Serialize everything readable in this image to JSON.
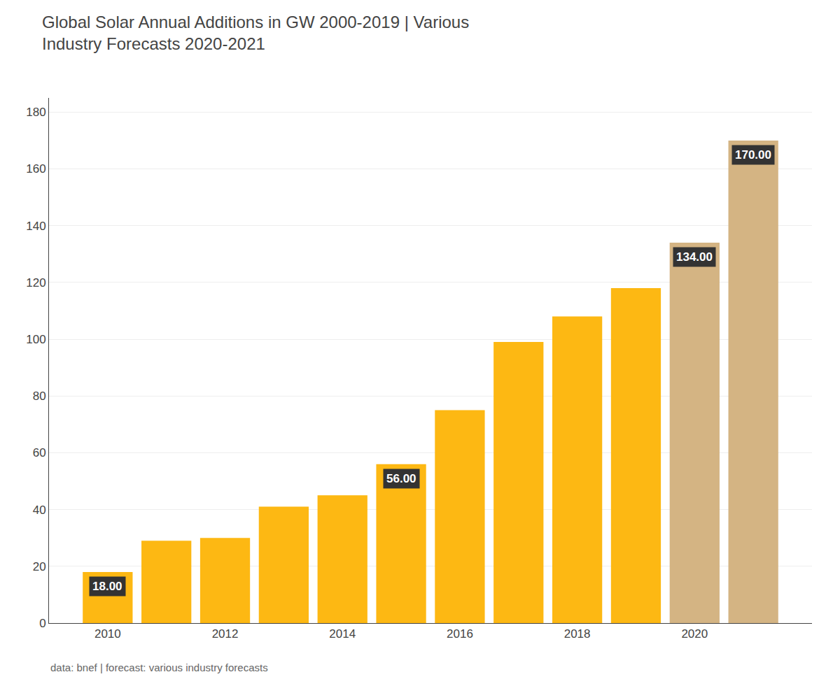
{
  "chart_data": {
    "type": "bar",
    "title": "Global Solar Annual Additions in GW 2000-2019 | Various\nIndustry Forecasts 2020-2021",
    "x": [
      2010,
      2011,
      2012,
      2013,
      2014,
      2015,
      2016,
      2017,
      2018,
      2019,
      2020,
      2021
    ],
    "values": [
      18,
      29,
      30,
      41,
      45,
      56,
      75,
      99,
      108,
      118,
      134,
      170
    ],
    "colors": [
      "#FDB813",
      "#FDB813",
      "#FDB813",
      "#FDB813",
      "#FDB813",
      "#FDB813",
      "#FDB813",
      "#FDB813",
      "#FDB813",
      "#FDB813",
      "#D4B483",
      "#D4B483"
    ],
    "data_labels": true,
    "value_labels": [
      "18.00",
      null,
      null,
      null,
      null,
      "56.00",
      null,
      null,
      null,
      null,
      "134.00",
      "170.00"
    ],
    "xlim": [
      2009,
      2022
    ],
    "xticks": [
      2010,
      2012,
      2014,
      2016,
      2018,
      2020
    ],
    "ylim": [
      0,
      185
    ],
    "yticks": [
      0,
      20,
      40,
      60,
      80,
      100,
      120,
      140,
      160,
      180
    ],
    "grid": true,
    "footnote": "data: bnef | forecast: various industry forecasts"
  }
}
